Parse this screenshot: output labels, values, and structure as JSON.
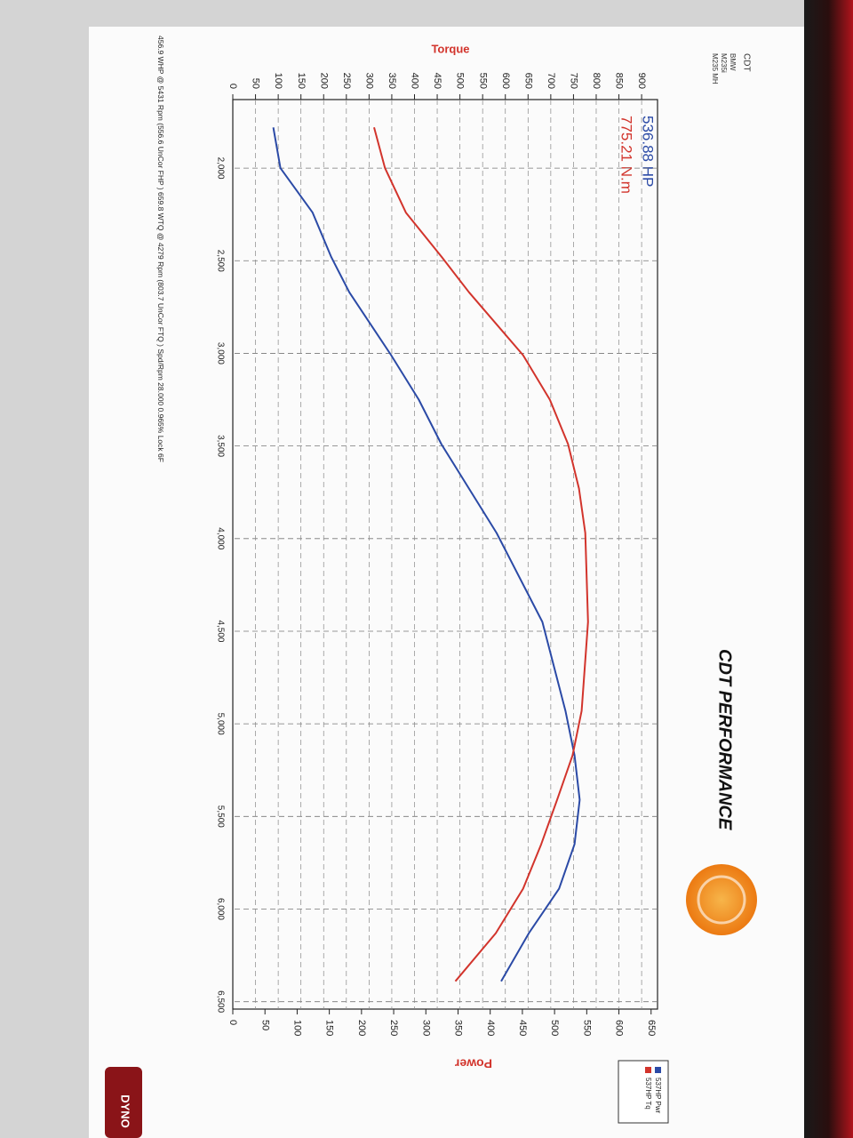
{
  "chart_data": {
    "type": "line",
    "title": "CDT PERFORMANCE",
    "header": [
      "CDT",
      "BMW",
      "M235i",
      "M235 MH"
    ],
    "annotations": [
      {
        "text": "536.88 HP",
        "color": "#2b4aa6"
      },
      {
        "text": "775.21 N.m",
        "color": "#d2342c"
      }
    ],
    "ylabel": "Torque",
    "y2label": "Power",
    "footer": "456.9 WHP @ 5431 Rpm (556.6 UnCor FHP ) 659.8 WTQ @ 4279 Rpm (803.7 UnCor FTQ ) Spd/Rpm 28.000 0.965% Lock 6F",
    "badge": "DYNO",
    "x": [
      1780,
      2000,
      2240,
      2480,
      2670,
      3010,
      3250,
      3490,
      3730,
      3970,
      4450,
      4930,
      5170,
      5410,
      5650,
      5890,
      6130,
      6390
    ],
    "series": [
      {
        "name": "537HP Pwr",
        "color": "#2b4aa6",
        "axis": "y2",
        "values": [
          63,
          74,
          124,
          153,
          181,
          246,
          289,
          324,
          367,
          410,
          481,
          517,
          531,
          539,
          531,
          507,
          460,
          417
        ]
      },
      {
        "name": "537HP Tq",
        "color": "#d2342c",
        "values": [
          311,
          335,
          381,
          460,
          520,
          639,
          698,
          738,
          762,
          776,
          782,
          768,
          748,
          714,
          679,
          639,
          579,
          490
        ]
      }
    ],
    "xlim": [
      1630,
      6540
    ],
    "xticks": [
      {
        "value": 2000,
        "label": "2,000"
      },
      {
        "value": 2500,
        "label": "2,500"
      },
      {
        "value": 3000,
        "label": "3,000"
      },
      {
        "value": 3500,
        "label": "3,500"
      },
      {
        "value": 4000,
        "label": "4,000"
      },
      {
        "value": 4500,
        "label": "4,500"
      },
      {
        "value": 5000,
        "label": "5,000"
      },
      {
        "value": 5500,
        "label": "5,500"
      },
      {
        "value": 6000,
        "label": "6,000"
      },
      {
        "value": 6500,
        "label": "6,500"
      }
    ],
    "ylim": [
      0,
      935
    ],
    "yticks": [
      0,
      50,
      100,
      150,
      200,
      250,
      300,
      350,
      400,
      450,
      500,
      550,
      600,
      650,
      700,
      750,
      800,
      850,
      900
    ],
    "y2lim": [
      0,
      660
    ],
    "y2ticks": [
      0,
      50,
      100,
      150,
      200,
      250,
      300,
      350,
      400,
      450,
      500,
      550,
      600,
      650
    ],
    "grid": true
  }
}
